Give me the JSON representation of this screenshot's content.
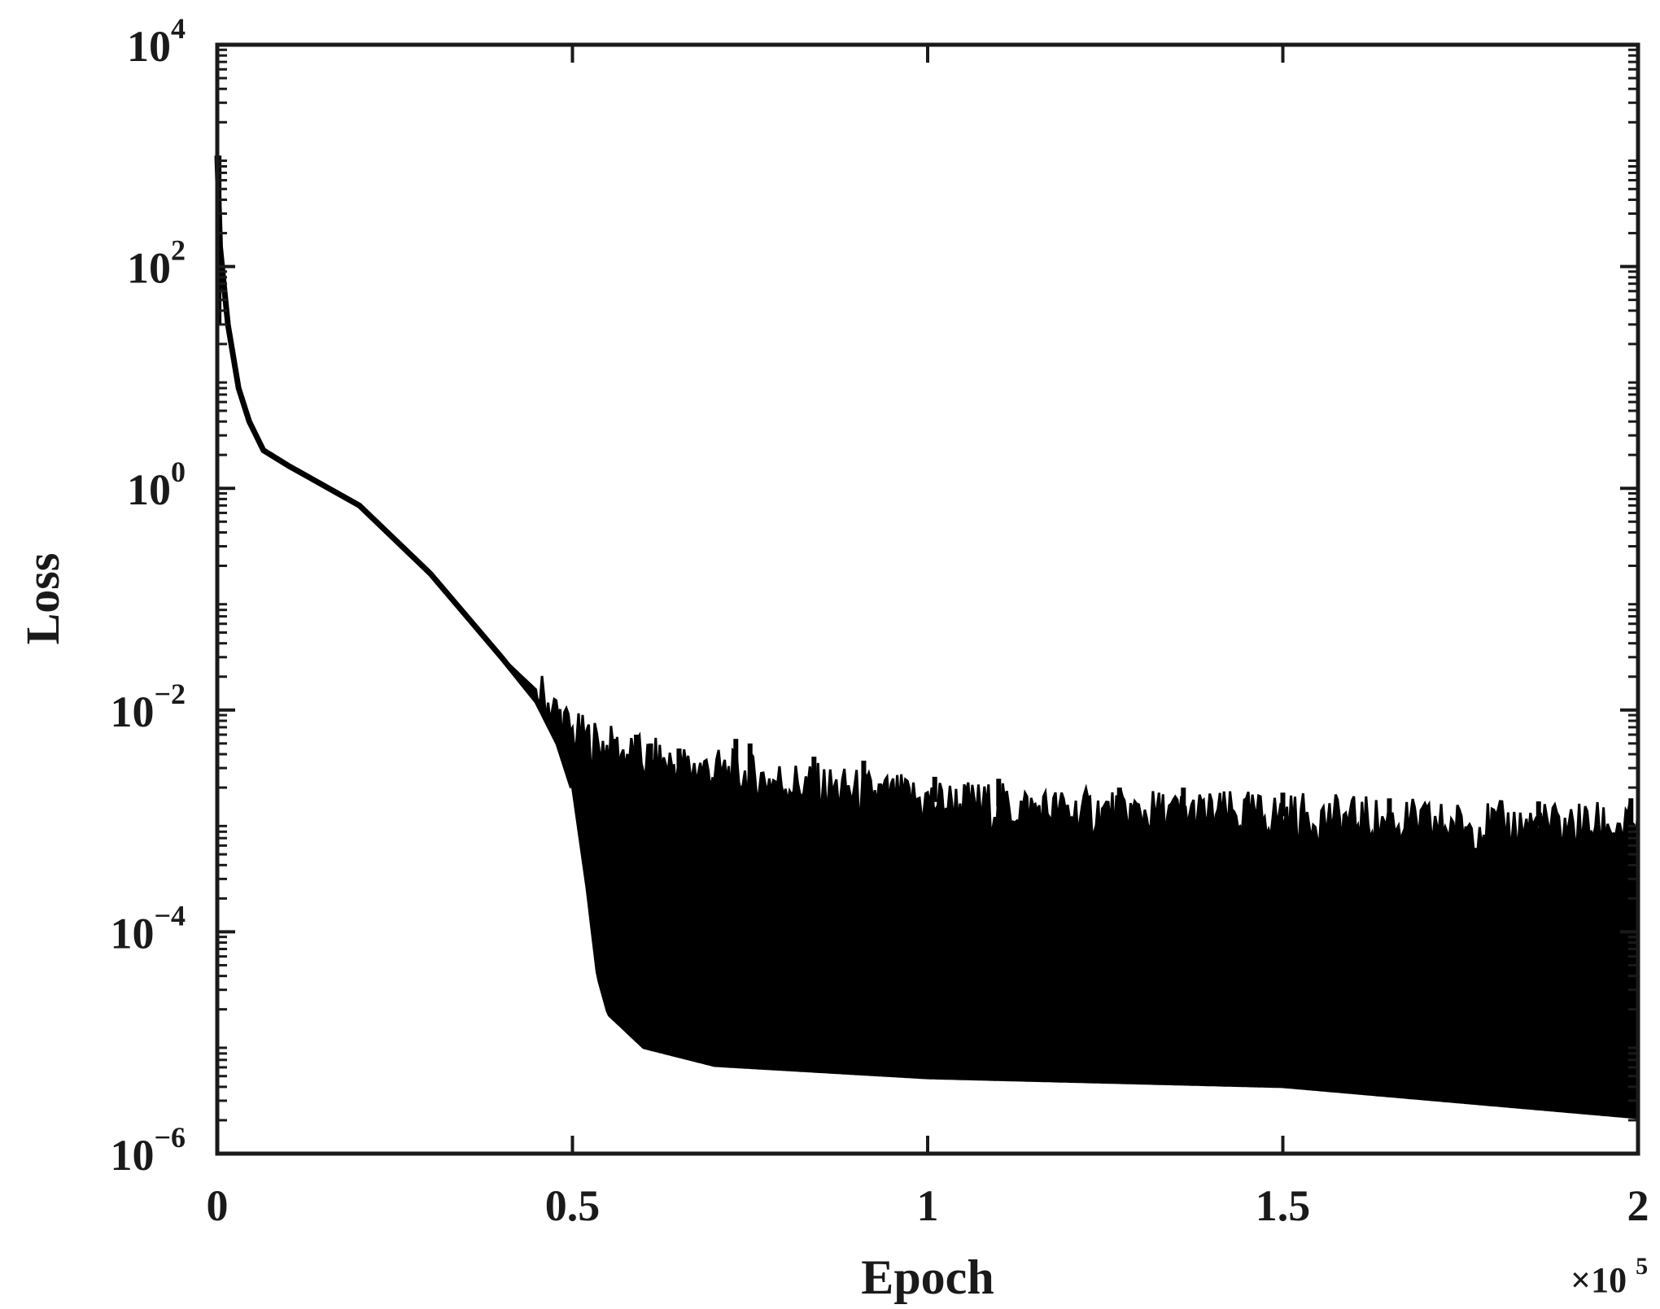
{
  "chart_data": {
    "type": "line",
    "xlabel": "Epoch",
    "ylabel": "Loss",
    "x_multiplier_label": "×10",
    "x_multiplier_exp": "5",
    "xlim": [
      0,
      200000
    ],
    "ylim": [
      1e-06,
      10000
    ],
    "yscale": "log",
    "grid": false,
    "x_ticks": [
      {
        "value": 0,
        "label": "0"
      },
      {
        "value": 50000,
        "label": "0.5"
      },
      {
        "value": 100000,
        "label": "1"
      },
      {
        "value": 150000,
        "label": "1.5"
      },
      {
        "value": 200000,
        "label": "2"
      }
    ],
    "y_ticks": [
      {
        "value": 10000,
        "base": "10",
        "exp": "4"
      },
      {
        "value": 100,
        "base": "10",
        "exp": "2"
      },
      {
        "value": 1,
        "base": "10",
        "exp": "0"
      },
      {
        "value": 0.01,
        "base": "10",
        "exp": "−2"
      },
      {
        "value": 0.0001,
        "base": "10",
        "exp": "−4"
      },
      {
        "value": 1e-06,
        "base": "10",
        "exp": "−6"
      }
    ],
    "series": [
      {
        "color": "#000000",
        "lower_envelope": [
          [
            0,
            1000
          ],
          [
            400,
            150
          ],
          [
            1500,
            30
          ],
          [
            3000,
            8
          ],
          [
            4500,
            4
          ],
          [
            6500,
            2.2
          ],
          [
            10000,
            1.6
          ],
          [
            20000,
            0.7
          ],
          [
            30000,
            0.17
          ],
          [
            40000,
            0.03
          ],
          [
            45000,
            0.012
          ],
          [
            48000,
            0.005
          ],
          [
            50000,
            0.002
          ],
          [
            52000,
            0.00025
          ],
          [
            53500,
            4e-05
          ],
          [
            55000,
            1.8e-05
          ],
          [
            60000,
            9e-06
          ],
          [
            70000,
            6.2e-06
          ],
          [
            100000,
            4.8e-06
          ],
          [
            150000,
            4e-06
          ],
          [
            200000,
            2.1e-06
          ]
        ],
        "upper_envelope": [
          [
            0,
            1000
          ],
          [
            400,
            150
          ],
          [
            1500,
            30
          ],
          [
            3000,
            8
          ],
          [
            4500,
            4
          ],
          [
            6500,
            2.2
          ],
          [
            10000,
            1.6
          ],
          [
            20000,
            0.7
          ],
          [
            30000,
            0.17
          ],
          [
            40000,
            0.03
          ],
          [
            45000,
            0.015
          ],
          [
            48000,
            0.009
          ],
          [
            50000,
            0.006
          ],
          [
            55000,
            0.0045
          ],
          [
            60000,
            0.0035
          ],
          [
            70000,
            0.0028
          ],
          [
            80000,
            0.0022
          ],
          [
            90000,
            0.0018
          ],
          [
            100000,
            0.0015
          ],
          [
            120000,
            0.0012
          ],
          [
            150000,
            0.0011
          ],
          [
            175000,
            0.0009
          ],
          [
            200000,
            0.0009
          ]
        ],
        "spikes": [
          [
            48000,
            0.008
          ],
          [
            51000,
            0.0045
          ],
          [
            56000,
            0.0055
          ],
          [
            59000,
            0.006
          ],
          [
            61000,
            0.005
          ],
          [
            65000,
            0.0045
          ],
          [
            73000,
            0.0055
          ],
          [
            75000,
            0.005
          ],
          [
            84000,
            0.0038
          ],
          [
            91000,
            0.0035
          ],
          [
            101000,
            0.0025
          ],
          [
            110000,
            0.0024
          ],
          [
            127000,
            0.002
          ],
          [
            136000,
            0.002
          ],
          [
            150000,
            0.0018
          ],
          [
            165000,
            0.0016
          ],
          [
            186000,
            0.0015
          ],
          [
            199000,
            0.0016
          ]
        ]
      }
    ]
  }
}
